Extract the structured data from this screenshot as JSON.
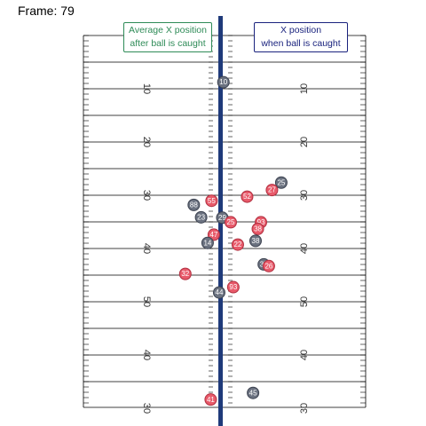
{
  "frame": {
    "label": "Frame: 79"
  },
  "legend": {
    "avg_x_line1": "Average X position",
    "avg_x_line2": "after ball is caught",
    "catch_x_line1": "X position",
    "catch_x_line2": "when ball is caught"
  },
  "colors": {
    "field_line": "#000000",
    "catch_line": "#1f3a7a",
    "team_red": "#e85a6a",
    "team_gray": "#6b7280"
  },
  "field": {
    "yard_labels": [
      "10",
      "20",
      "30",
      "40",
      "50",
      "40",
      "30"
    ]
  },
  "players": [
    {
      "num": "10",
      "team": "gray",
      "x": 49.6,
      "y": 21.3
    },
    {
      "num": "25",
      "team": "gray",
      "x": 70.1,
      "y": 45.6
    },
    {
      "num": "27",
      "team": "red",
      "x": 66.8,
      "y": 47.4
    },
    {
      "num": "52",
      "team": "red",
      "x": 58.0,
      "y": 49.0
    },
    {
      "num": "55",
      "team": "red",
      "x": 45.4,
      "y": 50.0
    },
    {
      "num": "88",
      "team": "gray",
      "x": 39.1,
      "y": 51.0
    },
    {
      "num": "29",
      "team": "gray",
      "x": 49.2,
      "y": 54.1
    },
    {
      "num": "23",
      "team": "gray",
      "x": 41.7,
      "y": 54.0
    },
    {
      "num": "25",
      "team": "red",
      "x": 52.2,
      "y": 55.2
    },
    {
      "num": "93",
      "team": "red",
      "x": 62.9,
      "y": 55.2
    },
    {
      "num": "38",
      "team": "red",
      "x": 61.8,
      "y": 56.8
    },
    {
      "num": "47",
      "team": "red",
      "x": 46.2,
      "y": 58.2
    },
    {
      "num": "38",
      "team": "gray",
      "x": 61.0,
      "y": 59.7
    },
    {
      "num": "22",
      "team": "red",
      "x": 54.7,
      "y": 60.6
    },
    {
      "num": "14",
      "team": "gray",
      "x": 44.0,
      "y": 60.2
    },
    {
      "num": "37",
      "team": "gray",
      "x": 63.9,
      "y": 65.4
    },
    {
      "num": "26",
      "team": "red",
      "x": 65.7,
      "y": 65.8
    },
    {
      "num": "32",
      "team": "red",
      "x": 36.1,
      "y": 67.7
    },
    {
      "num": "93",
      "team": "red",
      "x": 53.1,
      "y": 70.9
    },
    {
      "num": "44",
      "team": "gray",
      "x": 48.1,
      "y": 72.2
    },
    {
      "num": "45",
      "team": "gray",
      "x": 60.1,
      "y": 96.5
    },
    {
      "num": "41",
      "team": "red",
      "x": 45.1,
      "y": 98.1
    }
  ]
}
